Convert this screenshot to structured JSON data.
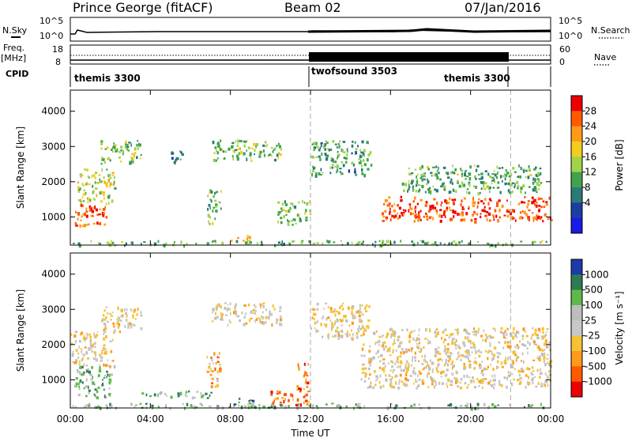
{
  "header": {
    "station": "Prince George (fitACF)",
    "beam": "Beam 02",
    "date": "07/Jan/2016"
  },
  "top_panels": {
    "nsky_label": "N.Sky",
    "nsky_ticks": [
      "10^5",
      "10^0"
    ],
    "nsearch_label": "N.Search",
    "freq_label_1": "Freq.",
    "freq_label_2": "[MHz]",
    "freq_ticks": [
      "18",
      "8"
    ],
    "nave_ticks": [
      "60",
      "0"
    ],
    "nave_label": "Nave",
    "cpid_label": "CPID",
    "cpid_segments": [
      "themis 3300",
      "twofsound 3503",
      "themis 3300"
    ]
  },
  "colors": {
    "gap": "#aaaaaa"
  },
  "chart_data": [
    {
      "type": "heatmap",
      "title": "",
      "xlabel": "Time UT",
      "ylabel": "Slant Range [km]",
      "x_ticks": [
        "00:00",
        "04:00",
        "08:00",
        "12:00",
        "16:00",
        "20:00",
        "00:00"
      ],
      "xlim_hours": [
        0,
        24
      ],
      "ylim": [
        200,
        4600
      ],
      "y_ticks": [
        1000,
        2000,
        3000,
        4000
      ],
      "mode_change_hours": [
        12,
        22
      ],
      "colorbar": {
        "label": "Power [dB]",
        "ticks": [
          "28",
          "24",
          "20",
          "16",
          "12",
          "8",
          "4"
        ],
        "colors": [
          "#ee0000",
          "#ff5a00",
          "#ff9a1a",
          "#f2cc1f",
          "#9fd34a",
          "#3fa34d",
          "#2a7a78",
          "#1c3ea3",
          "#1a1ae6"
        ]
      },
      "echo_regions": [
        {
          "t0": 0.2,
          "t1": 1.8,
          "r0": 700,
          "r1": 1400,
          "level": 0.85
        },
        {
          "t0": 0.3,
          "t1": 2.2,
          "r0": 1400,
          "r1": 2400,
          "level": 0.55
        },
        {
          "t0": 1.5,
          "t1": 3.5,
          "r0": 2500,
          "r1": 3200,
          "level": 0.45
        },
        {
          "t0": 5.0,
          "t1": 5.6,
          "r0": 2500,
          "r1": 3000,
          "level": 0.3
        },
        {
          "t0": 6.8,
          "t1": 7.5,
          "r0": 800,
          "r1": 1800,
          "level": 0.45
        },
        {
          "t0": 7.0,
          "t1": 10.5,
          "r0": 2600,
          "r1": 3200,
          "level": 0.45
        },
        {
          "t0": 8.0,
          "t1": 9.0,
          "r0": 300,
          "r1": 500,
          "level": 0.8
        },
        {
          "t0": 10.3,
          "t1": 12.0,
          "r0": 800,
          "r1": 1500,
          "level": 0.45
        },
        {
          "t0": 12.0,
          "t1": 15.0,
          "r0": 2200,
          "r1": 3200,
          "level": 0.35
        },
        {
          "t0": 15.5,
          "t1": 24.0,
          "r0": 900,
          "r1": 1600,
          "level": 0.9
        },
        {
          "t0": 16.5,
          "t1": 23.5,
          "r0": 1700,
          "r1": 2500,
          "level": 0.4
        },
        {
          "t0": 0.0,
          "t1": 24.0,
          "r0": 220,
          "r1": 350,
          "level": 0.4
        }
      ]
    },
    {
      "type": "heatmap",
      "title": "",
      "xlabel": "Time UT",
      "ylabel": "Slant Range [km]",
      "x_ticks": [
        "00:00",
        "04:00",
        "08:00",
        "12:00",
        "16:00",
        "20:00",
        "00:00"
      ],
      "xlim_hours": [
        0,
        24
      ],
      "ylim": [
        200,
        4600
      ],
      "y_ticks": [
        1000,
        2000,
        3000,
        4000
      ],
      "mode_change_hours": [
        12,
        22
      ],
      "colorbar": {
        "label": "Velocity [m s⁻¹]",
        "ticks": [
          "1000",
          "500",
          "100",
          "25",
          "-25",
          "-100",
          "-500",
          "-1000"
        ],
        "colors": [
          "#1d3aa8",
          "#2f7a55",
          "#5fb94a",
          "#bdbdbd",
          "#c8c8c8",
          "#f5c236",
          "#ff9a1a",
          "#ff5a00",
          "#ee0000"
        ]
      },
      "echo_regions": [
        {
          "t0": 0.2,
          "t1": 2.0,
          "r0": 500,
          "r1": 1400,
          "level": 0.75
        },
        {
          "t0": 0.0,
          "t1": 2.2,
          "r0": 1400,
          "r1": 2400,
          "level": 0.45
        },
        {
          "t0": 1.5,
          "t1": 3.5,
          "r0": 2400,
          "r1": 3100,
          "level": 0.45
        },
        {
          "t0": 3.5,
          "t1": 7.0,
          "r0": 500,
          "r1": 700,
          "level": 0.7
        },
        {
          "t0": 6.8,
          "t1": 7.5,
          "r0": 800,
          "r1": 1800,
          "level": 0.3
        },
        {
          "t0": 7.0,
          "t1": 10.5,
          "r0": 2600,
          "r1": 3200,
          "level": 0.45
        },
        {
          "t0": 8.0,
          "t1": 9.2,
          "r0": 250,
          "r1": 500,
          "level": 0.8
        },
        {
          "t0": 10.0,
          "t1": 12.0,
          "r0": 300,
          "r1": 700,
          "level": 0.2
        },
        {
          "t0": 11.3,
          "t1": 12.0,
          "r0": 700,
          "r1": 1500,
          "level": 0.15
        },
        {
          "t0": 12.0,
          "t1": 15.0,
          "r0": 2200,
          "r1": 3200,
          "level": 0.45
        },
        {
          "t0": 14.5,
          "t1": 24.0,
          "r0": 800,
          "r1": 2500,
          "level": 0.45
        },
        {
          "t0": 0.0,
          "t1": 24.0,
          "r0": 220,
          "r1": 350,
          "level": 0.7
        }
      ]
    }
  ]
}
